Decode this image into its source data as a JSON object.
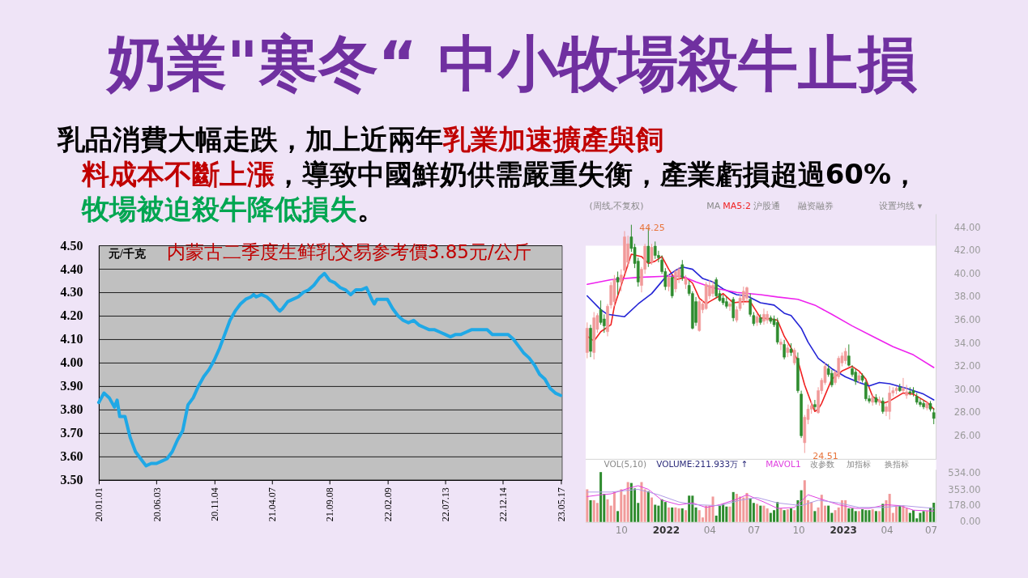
{
  "chart_data": [
    {
      "type": "other",
      "title": "奶業\"寒冬“ 中小牧場殺牛止損",
      "annotations": [
        "乳品消費大幅走跌，加上近兩年",
        "乳業加速擴產與飼",
        "料成本不斷上漲",
        "，導致中國鮮奶供需嚴重失衡，產業虧損超過60%，",
        "牧場被迫殺牛降低損失",
        "。"
      ]
    },
    {
      "type": "line",
      "title": "内蒙古二季度生鲜乳交易参考價3.85元/公斤",
      "ylabel": "元/千克",
      "x": [
        "2020-01-01",
        "2020-01-15",
        "2020-01-29",
        "2020-02-12",
        "2020-02-19",
        "2020-02-26",
        "2020-03-11",
        "2020-03-25",
        "2020-04-08",
        "2020-04-22",
        "2020-05-06",
        "2020-05-20",
        "2020-06-03",
        "2020-06-17",
        "2020-07-01",
        "2020-07-15",
        "2020-07-29",
        "2020-08-12",
        "2020-08-26",
        "2020-09-09",
        "2020-09-23",
        "2020-10-07",
        "2020-10-21",
        "2020-11-04",
        "2020-11-18",
        "2020-12-02",
        "2020-12-16",
        "2020-12-30",
        "2021-01-13",
        "2021-01-27",
        "2021-02-10",
        "2021-02-17",
        "2021-02-24",
        "2021-03-10",
        "2021-03-24",
        "2021-04-07",
        "2021-04-21",
        "2021-04-28",
        "2021-05-05",
        "2021-05-19",
        "2021-06-02",
        "2021-06-16",
        "2021-06-30",
        "2021-07-14",
        "2021-07-28",
        "2021-08-11",
        "2021-08-25",
        "2021-09-08",
        "2021-09-22",
        "2021-10-06",
        "2021-10-20",
        "2021-11-03",
        "2021-11-17",
        "2021-12-01",
        "2021-12-15",
        "2021-12-29",
        "2022-01-05",
        "2022-01-12",
        "2022-01-26",
        "2022-02-09",
        "2022-02-23",
        "2022-03-09",
        "2022-03-23",
        "2022-04-06",
        "2022-04-20",
        "2022-05-04",
        "2022-05-18",
        "2022-06-01",
        "2022-06-15",
        "2022-06-29",
        "2022-07-13",
        "2022-07-27",
        "2022-08-10",
        "2022-08-24",
        "2022-09-07",
        "2022-09-21",
        "2022-10-05",
        "2022-10-19",
        "2022-11-02",
        "2022-11-16",
        "2022-11-30",
        "2022-12-14",
        "2022-12-28",
        "2023-01-11",
        "2023-01-25",
        "2023-02-08",
        "2023-02-22",
        "2023-03-08",
        "2023-03-22",
        "2023-04-05",
        "2023-04-19",
        "2023-05-03",
        "2023-05-17"
      ],
      "series": [
        {
          "color": "#1fa8e6",
          "values": [
            3.83,
            3.87,
            3.85,
            3.81,
            3.84,
            3.77,
            3.77,
            3.68,
            3.62,
            3.59,
            3.56,
            3.57,
            3.57,
            3.58,
            3.59,
            3.62,
            3.67,
            3.71,
            3.82,
            3.85,
            3.9,
            3.94,
            3.97,
            4.01,
            4.06,
            4.12,
            4.18,
            4.22,
            4.25,
            4.27,
            4.28,
            4.29,
            4.28,
            4.29,
            4.28,
            4.26,
            4.23,
            4.22,
            4.23,
            4.26,
            4.27,
            4.28,
            4.3,
            4.31,
            4.33,
            4.36,
            4.38,
            4.35,
            4.34,
            4.32,
            4.31,
            4.29,
            4.31,
            4.31,
            4.32,
            4.27,
            4.25,
            4.27,
            4.27,
            4.27,
            4.23,
            4.2,
            4.18,
            4.17,
            4.18,
            4.16,
            4.15,
            4.14,
            4.14,
            4.13,
            4.12,
            4.11,
            4.12,
            4.12,
            4.13,
            4.14,
            4.14,
            4.14,
            4.14,
            4.12,
            4.12,
            4.12,
            4.12,
            4.1,
            4.07,
            4.04,
            4.02,
            3.99,
            3.95,
            3.93,
            3.89,
            3.87,
            3.86
          ]
        }
      ],
      "xlim": [
        "2020-01-01",
        "2023-05-20"
      ],
      "xticks": [
        {
          "value": "2020-01-01",
          "label": "20.01.01"
        },
        {
          "value": "2020-06-03",
          "label": "20.06.03"
        },
        {
          "value": "2020-11-04",
          "label": "20.11.04"
        },
        {
          "value": "2021-04-07",
          "label": "21.04.07"
        },
        {
          "value": "2021-09-08",
          "label": "21.09.08"
        },
        {
          "value": "2022-02-09",
          "label": "22.02.09"
        },
        {
          "value": "2022-07-13",
          "label": "22.07.13"
        },
        {
          "value": "2022-12-14",
          "label": "22.12.14"
        },
        {
          "value": "2023-05-17",
          "label": "23.05.17"
        }
      ],
      "ylim": [
        3.5,
        4.5
      ],
      "yticks": [
        {
          "value": 3.5,
          "label": "3.50"
        },
        {
          "value": 3.6,
          "label": "3.60"
        },
        {
          "value": 3.7,
          "label": "3.70"
        },
        {
          "value": 3.8,
          "label": "3.80"
        },
        {
          "value": 3.9,
          "label": "3.90"
        },
        {
          "value": 4.0,
          "label": "4.00"
        },
        {
          "value": 4.1,
          "label": "4.10"
        },
        {
          "value": 4.2,
          "label": "4.20"
        },
        {
          "value": 4.3,
          "label": "4.30"
        },
        {
          "value": 4.4,
          "label": "4.40"
        },
        {
          "value": 4.5,
          "label": "4.50"
        }
      ],
      "grid": "y"
    },
    {
      "type": "candlestick",
      "subtitle": "(周线,不复权)",
      "x": [
        "2021-07-23",
        "2021-07-30",
        "2021-08-06",
        "2021-08-13",
        "2021-08-20",
        "2021-08-27",
        "2021-09-03",
        "2021-09-10",
        "2021-09-17",
        "2021-09-24",
        "2021-10-01",
        "2021-10-08",
        "2021-10-15",
        "2021-10-22",
        "2021-10-29",
        "2021-11-05",
        "2021-11-12",
        "2021-11-19",
        "2021-11-26",
        "2021-12-03",
        "2021-12-10",
        "2021-12-17",
        "2021-12-24",
        "2021-12-31",
        "2022-01-07",
        "2022-01-14",
        "2022-01-21",
        "2022-01-28",
        "2022-02-04",
        "2022-02-11",
        "2022-02-18",
        "2022-02-25",
        "2022-03-04",
        "2022-03-11",
        "2022-03-18",
        "2022-03-25",
        "2022-04-01",
        "2022-04-08",
        "2022-04-15",
        "2022-04-22",
        "2022-04-29",
        "2022-05-06",
        "2022-05-13",
        "2022-05-20",
        "2022-05-27",
        "2022-06-03",
        "2022-06-10",
        "2022-06-17",
        "2022-06-24",
        "2022-07-01",
        "2022-07-08",
        "2022-07-15",
        "2022-07-22",
        "2022-07-29",
        "2022-08-05",
        "2022-08-12",
        "2022-08-19",
        "2022-08-26",
        "2022-09-02",
        "2022-09-09",
        "2022-09-16",
        "2022-09-23",
        "2022-09-30",
        "2022-10-07",
        "2022-10-14",
        "2022-10-21",
        "2022-10-28",
        "2022-11-04",
        "2022-11-11",
        "2022-11-18",
        "2022-11-25",
        "2022-12-02",
        "2022-12-09",
        "2022-12-16",
        "2022-12-23",
        "2022-12-30",
        "2023-01-06",
        "2023-01-13",
        "2023-01-20",
        "2023-01-27",
        "2023-02-03",
        "2023-02-10",
        "2023-02-17",
        "2023-02-24",
        "2023-03-03",
        "2023-03-10",
        "2023-03-17",
        "2023-03-24",
        "2023-03-31",
        "2023-04-07",
        "2023-04-14",
        "2023-04-21",
        "2023-04-28",
        "2023-05-05",
        "2023-05-12",
        "2023-05-19",
        "2023-05-26",
        "2023-06-02",
        "2023-06-09",
        "2023-06-16",
        "2023-06-23",
        "2023-06-30",
        "2023-07-07"
      ],
      "ohlc": [
        [
          33.2,
          35.8,
          32.7,
          35.3
        ],
        [
          35.3,
          35.6,
          32.8,
          33.3
        ],
        [
          33.2,
          36.7,
          32.6,
          36.2
        ],
        [
          35.2,
          36.6,
          34.9,
          36.4
        ],
        [
          36.9,
          37.7,
          35.6,
          35.8
        ],
        [
          36.1,
          36.5,
          34.9,
          35.5
        ],
        [
          35.0,
          37.4,
          34.6,
          37.2
        ],
        [
          37.3,
          39.3,
          37.0,
          39.0
        ],
        [
          37.6,
          39.9,
          37.2,
          39.5
        ],
        [
          39.7,
          40.2,
          38.2,
          39.3
        ],
        [
          39.3,
          40.4,
          38.5,
          39.9
        ],
        [
          40.3,
          43.7,
          40.0,
          43.2
        ],
        [
          41.0,
          43.3,
          40.6,
          42.6
        ],
        [
          43.2,
          44.25,
          41.9,
          42.2
        ],
        [
          42.3,
          42.6,
          40.5,
          40.9
        ],
        [
          41.1,
          41.4,
          38.9,
          39.3
        ],
        [
          39.0,
          40.6,
          38.4,
          40.4
        ],
        [
          40.4,
          42.6,
          40.0,
          42.4
        ],
        [
          42.4,
          44.0,
          40.6,
          41.0
        ],
        [
          41.0,
          42.6,
          40.8,
          42.3
        ],
        [
          42.4,
          42.8,
          41.3,
          41.6
        ],
        [
          41.6,
          42.0,
          41.0,
          41.4
        ],
        [
          41.2,
          41.6,
          40.0,
          40.2
        ],
        [
          40.2,
          40.5,
          38.6,
          38.9
        ],
        [
          38.9,
          40.0,
          38.5,
          39.7
        ],
        [
          39.7,
          39.9,
          37.9,
          38.1
        ],
        [
          38.7,
          40.4,
          38.4,
          40.2
        ],
        [
          39.7,
          40.6,
          39.2,
          40.4
        ],
        [
          40.8,
          41.2,
          39.4,
          39.7
        ],
        [
          39.1,
          39.9,
          38.7,
          39.6
        ],
        [
          39.0,
          39.4,
          38.1,
          38.3
        ],
        [
          38.3,
          38.5,
          35.2,
          35.3
        ],
        [
          37.6,
          38.0,
          35.5,
          35.8
        ],
        [
          35.1,
          37.8,
          35.0,
          37.6
        ],
        [
          36.9,
          37.7,
          36.6,
          37.4
        ],
        [
          37.0,
          39.3,
          36.9,
          39.1
        ],
        [
          38.1,
          39.5,
          37.8,
          39.0
        ],
        [
          38.3,
          39.4,
          38.0,
          39.0
        ],
        [
          39.5,
          39.7,
          37.9,
          38.1
        ],
        [
          38.3,
          38.6,
          37.6,
          37.7
        ],
        [
          37.9,
          38.2,
          37.3,
          37.5
        ],
        [
          37.6,
          38.0,
          37.0,
          37.2
        ],
        [
          37.2,
          37.6,
          36.8,
          37.4
        ],
        [
          37.8,
          38.0,
          35.9,
          36.2
        ],
        [
          36.0,
          37.2,
          35.8,
          36.9
        ],
        [
          37.0,
          38.2,
          36.8,
          37.9
        ],
        [
          37.7,
          38.9,
          37.3,
          38.5
        ],
        [
          37.9,
          38.9,
          37.6,
          38.8
        ],
        [
          37.8,
          38.3,
          36.3,
          36.5
        ],
        [
          36.4,
          36.7,
          35.5,
          35.7
        ],
        [
          35.8,
          36.6,
          35.5,
          36.3
        ],
        [
          36.2,
          36.5,
          35.6,
          35.8
        ],
        [
          35.9,
          37.0,
          35.6,
          36.5
        ],
        [
          36.0,
          36.8,
          35.7,
          36.5
        ],
        [
          36.2,
          36.4,
          35.7,
          35.9
        ],
        [
          36.1,
          36.4,
          35.4,
          35.6
        ],
        [
          35.8,
          36.2,
          33.9,
          34.1
        ],
        [
          33.9,
          34.4,
          33.4,
          34.1
        ],
        [
          33.9,
          34.3,
          32.6,
          32.8
        ],
        [
          33.2,
          33.9,
          32.8,
          33.6
        ],
        [
          33.5,
          34.0,
          32.9,
          33.2
        ],
        [
          32.3,
          33.6,
          32.1,
          33.4
        ],
        [
          32.7,
          33.2,
          29.7,
          29.9
        ],
        [
          29.6,
          29.9,
          25.8,
          26.0
        ],
        [
          25.4,
          27.8,
          24.51,
          27.6
        ],
        [
          27.4,
          28.7,
          27.0,
          28.3
        ],
        [
          28.3,
          29.0,
          27.9,
          28.6
        ],
        [
          28.7,
          29.1,
          28.2,
          28.5
        ],
        [
          28.0,
          30.2,
          27.9,
          29.9
        ],
        [
          29.9,
          31.0,
          29.6,
          30.8
        ],
        [
          30.6,
          32.3,
          30.4,
          32.0
        ],
        [
          31.8,
          32.2,
          31.1,
          31.3
        ],
        [
          31.4,
          31.7,
          30.2,
          30.4
        ],
        [
          30.6,
          31.7,
          30.4,
          31.5
        ],
        [
          31.1,
          32.9,
          30.9,
          32.7
        ],
        [
          32.3,
          33.2,
          32.0,
          32.9
        ],
        [
          32.5,
          33.6,
          32.2,
          33.3
        ],
        [
          32.9,
          33.9,
          32.0,
          32.1
        ],
        [
          31.8,
          32.1,
          31.1,
          31.3
        ],
        [
          31.5,
          31.8,
          30.4,
          30.7
        ],
        [
          30.8,
          31.5,
          30.5,
          31.2
        ],
        [
          31.2,
          31.4,
          30.6,
          30.8
        ],
        [
          30.6,
          30.8,
          29.0,
          29.2
        ],
        [
          29.2,
          29.5,
          28.8,
          29.0
        ],
        [
          28.9,
          29.6,
          28.6,
          29.3
        ],
        [
          29.3,
          29.6,
          28.7,
          28.9
        ],
        [
          28.9,
          29.4,
          28.6,
          29.1
        ],
        [
          29.0,
          29.3,
          27.9,
          28.1
        ],
        [
          28.1,
          28.8,
          27.7,
          28.5
        ],
        [
          28.1,
          30.3,
          27.4,
          29.7
        ],
        [
          29.7,
          30.2,
          29.4,
          29.9
        ],
        [
          29.9,
          30.3,
          29.6,
          30.1
        ],
        [
          30.2,
          30.5,
          29.8,
          29.9
        ],
        [
          29.9,
          31.0,
          29.7,
          30.1
        ],
        [
          29.5,
          30.4,
          29.2,
          29.8
        ],
        [
          29.8,
          30.2,
          29.5,
          29.7
        ],
        [
          29.9,
          30.2,
          29.4,
          29.7
        ],
        [
          29.4,
          29.7,
          28.7,
          28.9
        ],
        [
          28.9,
          29.2,
          28.5,
          28.7
        ],
        [
          28.8,
          29.1,
          28.3,
          28.5
        ],
        [
          28.4,
          29.0,
          28.2,
          28.8
        ],
        [
          28.8,
          29.0,
          28.1,
          28.3
        ],
        [
          28.0,
          28.4,
          27.0,
          27.5
        ]
      ],
      "colors": [
        "#f19a9a",
        "#2e8b2e",
        "#f19a9a",
        "#f19a9a",
        "#2e8b2e",
        "#2e8b2e",
        "#f19a9a",
        "#f19a9a",
        "#f19a9a",
        "#2e8b2e",
        "#f19a9a",
        "#f19a9a",
        "#f19a9a",
        "#2e8b2e",
        "#2e8b2e",
        "#2e8b2e",
        "#f19a9a",
        "#f19a9a",
        "#2e8b2e",
        "#f19a9a",
        "#2e8b2e",
        "#2e8b2e",
        "#2e8b2e",
        "#2e8b2e",
        "#f19a9a",
        "#2e8b2e",
        "#f19a9a",
        "#f19a9a",
        "#2e8b2e",
        "#f19a9a",
        "#2e8b2e",
        "#2e8b2e",
        "#2e8b2e",
        "#f19a9a",
        "#f19a9a",
        "#f19a9a",
        "#f19a9a",
        "#f19a9a",
        "#2e8b2e",
        "#2e8b2e",
        "#2e8b2e",
        "#2e8b2e",
        "#f19a9a",
        "#2e8b2e",
        "#f19a9a",
        "#f19a9a",
        "#f19a9a",
        "#f19a9a",
        "#2e8b2e",
        "#2e8b2e",
        "#f19a9a",
        "#2e8b2e",
        "#f19a9a",
        "#f19a9a",
        "#2e8b2e",
        "#2e8b2e",
        "#2e8b2e",
        "#f19a9a",
        "#2e8b2e",
        "#f19a9a",
        "#2e8b2e",
        "#f19a9a",
        "#2e8b2e",
        "#2e8b2e",
        "#f19a9a",
        "#f19a9a",
        "#f19a9a",
        "#2e8b2e",
        "#f19a9a",
        "#f19a9a",
        "#f19a9a",
        "#2e8b2e",
        "#2e8b2e",
        "#f19a9a",
        "#f19a9a",
        "#f19a9a",
        "#f19a9a",
        "#2e8b2e",
        "#2e8b2e",
        "#2e8b2e",
        "#f19a9a",
        "#2e8b2e",
        "#2e8b2e",
        "#2e8b2e",
        "#f19a9a",
        "#2e8b2e",
        "#f19a9a",
        "#2e8b2e",
        "#f19a9a",
        "#f19a9a",
        "#f19a9a",
        "#f19a9a",
        "#2e8b2e",
        "#f19a9a",
        "#f19a9a",
        "#2e8b2e",
        "#2e8b2e",
        "#2e8b2e",
        "#2e8b2e",
        "#2e8b2e",
        "#f19a9a",
        "#2e8b2e",
        "#2e8b2e"
      ],
      "series": [
        {
          "type": "line",
          "name": "MA5:2",
          "color": "#f02020",
          "x": [
            "2021-07-23",
            "2021-08-06",
            "2021-08-20",
            "2021-09-10",
            "2021-09-17",
            "2021-10-08",
            "2021-10-22",
            "2021-11-12",
            "2021-11-26",
            "2021-12-10",
            "2021-12-24",
            "2022-01-07",
            "2022-01-21",
            "2022-02-11",
            "2022-02-25",
            "2022-03-11",
            "2022-03-25",
            "2022-04-01",
            "2022-04-22",
            "2022-04-29",
            "2022-05-20",
            "2022-06-10",
            "2022-06-24",
            "2022-07-15",
            "2022-08-05",
            "2022-08-19",
            "2022-09-02",
            "2022-09-16",
            "2022-09-30",
            "2022-10-14",
            "2022-10-28",
            "2022-11-04",
            "2022-11-11",
            "2022-11-18",
            "2022-12-09",
            "2022-12-30",
            "2023-01-20",
            "2023-02-03",
            "2023-02-17",
            "2023-03-03",
            "2023-03-24",
            "2023-04-07",
            "2023-05-05",
            "2023-05-26",
            "2023-06-23",
            "2023-07-07"
          ],
          "values": [
            34.6,
            34.2,
            35.0,
            35.6,
            37.2,
            39.9,
            41.7,
            41.5,
            40.9,
            41.1,
            41.5,
            40.4,
            39.5,
            39.7,
            39.2,
            37.9,
            37.4,
            37.6,
            38.1,
            38.3,
            37.5,
            37.6,
            37.6,
            36.2,
            36.1,
            36.0,
            34.6,
            33.6,
            32.5,
            30.4,
            28.8,
            28.1,
            28.3,
            28.8,
            30.9,
            31.6,
            32.0,
            31.6,
            30.9,
            29.4,
            28.8,
            29.0,
            29.7,
            29.6,
            28.9,
            28.3
          ]
        },
        {
          "type": "line",
          "color": "#2424d6",
          "x": [
            "2021-07-23",
            "2021-08-20",
            "2021-09-03",
            "2021-10-08",
            "2021-11-05",
            "2021-12-03",
            "2021-12-31",
            "2022-01-21",
            "2022-02-04",
            "2022-02-25",
            "2022-03-18",
            "2022-04-08",
            "2022-04-29",
            "2022-05-27",
            "2022-06-17",
            "2022-07-15",
            "2022-08-12",
            "2022-09-02",
            "2022-09-16",
            "2022-10-07",
            "2022-10-21",
            "2022-11-11",
            "2022-12-09",
            "2023-01-06",
            "2023-02-03",
            "2023-02-24",
            "2023-03-17",
            "2023-04-07",
            "2023-05-12",
            "2023-06-16",
            "2023-07-07"
          ],
          "values": [
            38.1,
            36.9,
            36.5,
            36.3,
            37.4,
            38.3,
            39.7,
            40.3,
            40.6,
            40.4,
            39.6,
            39.3,
            38.7,
            38.2,
            38.1,
            37.5,
            37.3,
            36.6,
            36.4,
            35.3,
            34.1,
            32.7,
            31.8,
            31.1,
            30.6,
            30.3,
            30.6,
            30.5,
            30.1,
            29.6,
            29.1
          ]
        },
        {
          "type": "line",
          "color": "#ee22ee",
          "x": [
            "2021-07-23",
            "2021-09-10",
            "2021-11-05",
            "2021-12-31",
            "2022-02-04",
            "2022-03-04",
            "2022-04-08",
            "2022-05-27",
            "2022-07-15",
            "2022-08-19",
            "2022-09-30",
            "2022-11-04",
            "2022-12-09",
            "2023-01-20",
            "2023-03-03",
            "2023-04-14",
            "2023-05-26",
            "2023-07-07"
          ],
          "values": [
            39.1,
            39.5,
            39.7,
            39.8,
            39.8,
            39.3,
            38.8,
            38.4,
            38.2,
            38.0,
            37.8,
            37.3,
            36.5,
            35.5,
            34.6,
            33.7,
            33.0,
            31.9
          ]
        }
      ],
      "annotations": [
        "MA",
        "沪股通",
        "融资融券",
        "设置均线 ▾",
        {
          "text": "44.25",
          "x": "2021-10-22",
          "y": 44.25
        },
        {
          "text": "24.51",
          "x": "2022-10-14",
          "y": 24.51
        }
      ],
      "xlim": [
        "2021-07-19",
        "2023-07-11"
      ],
      "ylim": [
        24,
        45.2
      ],
      "yticks": [
        {
          "value": 26,
          "label": "26.00"
        },
        {
          "value": 28,
          "label": "28.00"
        },
        {
          "value": 30,
          "label": "30.00"
        },
        {
          "value": 32,
          "label": "32.00"
        },
        {
          "value": 34,
          "label": "34.00"
        },
        {
          "value": 36,
          "label": "36.00"
        },
        {
          "value": 38,
          "label": "38.00"
        },
        {
          "value": 40,
          "label": "40.00"
        },
        {
          "value": 42,
          "label": "42.00"
        },
        {
          "value": 44,
          "label": "44.00"
        }
      ],
      "tick_labels": "y"
    },
    {
      "type": "bar",
      "x": [
        "2021-07-23",
        "2021-07-30",
        "2021-08-06",
        "2021-08-13",
        "2021-08-20",
        "2021-08-27",
        "2021-09-03",
        "2021-09-10",
        "2021-09-17",
        "2021-09-24",
        "2021-10-01",
        "2021-10-08",
        "2021-10-15",
        "2021-10-22",
        "2021-10-29",
        "2021-11-05",
        "2021-11-12",
        "2021-11-19",
        "2021-11-26",
        "2021-12-03",
        "2021-12-10",
        "2021-12-17",
        "2021-12-24",
        "2021-12-31",
        "2022-01-07",
        "2022-01-14",
        "2022-01-21",
        "2022-01-28",
        "2022-02-04",
        "2022-02-11",
        "2022-02-18",
        "2022-02-25",
        "2022-03-04",
        "2022-03-11",
        "2022-03-18",
        "2022-03-25",
        "2022-04-01",
        "2022-04-08",
        "2022-04-15",
        "2022-04-22",
        "2022-04-29",
        "2022-05-06",
        "2022-05-13",
        "2022-05-20",
        "2022-05-27",
        "2022-06-03",
        "2022-06-10",
        "2022-06-17",
        "2022-06-24",
        "2022-07-01",
        "2022-07-08",
        "2022-07-15",
        "2022-07-22",
        "2022-07-29",
        "2022-08-05",
        "2022-08-12",
        "2022-08-19",
        "2022-08-26",
        "2022-09-02",
        "2022-09-09",
        "2022-09-16",
        "2022-09-23",
        "2022-09-30",
        "2022-10-07",
        "2022-10-14",
        "2022-10-21",
        "2022-10-28",
        "2022-11-04",
        "2022-11-11",
        "2022-11-18",
        "2022-11-25",
        "2022-12-02",
        "2022-12-09",
        "2022-12-16",
        "2022-12-23",
        "2022-12-30",
        "2023-01-06",
        "2023-01-13",
        "2023-01-20",
        "2023-01-27",
        "2023-02-03",
        "2023-02-10",
        "2023-02-17",
        "2023-02-24",
        "2023-03-03",
        "2023-03-10",
        "2023-03-17",
        "2023-03-24",
        "2023-03-31",
        "2023-04-07",
        "2023-04-14",
        "2023-04-21",
        "2023-04-28",
        "2023-05-05",
        "2023-05-12",
        "2023-05-19",
        "2023-05-26",
        "2023-06-02",
        "2023-06-09",
        "2023-06-16",
        "2023-06-23",
        "2023-06-30",
        "2023-07-07"
      ],
      "series": [
        {
          "type": "bar",
          "values": [
            360,
            240,
            240,
            210,
            550,
            310,
            250,
            180,
            330,
            120,
            360,
            300,
            440,
            430,
            370,
            210,
            440,
            360,
            340,
            270,
            190,
            180,
            250,
            220,
            160,
            160,
            160,
            150,
            150,
            130,
            290,
            290,
            160,
            130,
            50,
            180,
            180,
            280,
            70,
            180,
            200,
            170,
            170,
            330,
            310,
            280,
            270,
            320,
            260,
            210,
            200,
            180,
            180,
            150,
            100,
            130,
            220,
            150,
            130,
            140,
            150,
            130,
            240,
            350,
            460,
            240,
            220,
            120,
            160,
            300,
            180,
            180,
            100,
            130,
            160,
            240,
            240,
            150,
            150,
            120,
            120,
            140,
            130,
            130,
            140,
            120,
            120,
            200,
            240,
            310,
            100,
            180,
            180,
            180,
            150,
            100,
            130,
            40,
            100,
            120,
            120,
            160,
            211.933
          ],
          "colors": [
            "#f19a9a",
            "#2e8b2e",
            "#f19a9a",
            "#f19a9a",
            "#2e8b2e",
            "#2e8b2e",
            "#f19a9a",
            "#f19a9a",
            "#f19a9a",
            "#2e8b2e",
            "#f19a9a",
            "#f19a9a",
            "#f19a9a",
            "#2e8b2e",
            "#2e8b2e",
            "#2e8b2e",
            "#f19a9a",
            "#f19a9a",
            "#2e8b2e",
            "#f19a9a",
            "#2e8b2e",
            "#2e8b2e",
            "#2e8b2e",
            "#2e8b2e",
            "#f19a9a",
            "#2e8b2e",
            "#f19a9a",
            "#f19a9a",
            "#2e8b2e",
            "#f19a9a",
            "#2e8b2e",
            "#2e8b2e",
            "#2e8b2e",
            "#f19a9a",
            "#f19a9a",
            "#f19a9a",
            "#f19a9a",
            "#f19a9a",
            "#2e8b2e",
            "#2e8b2e",
            "#2e8b2e",
            "#2e8b2e",
            "#f19a9a",
            "#2e8b2e",
            "#f19a9a",
            "#f19a9a",
            "#f19a9a",
            "#f19a9a",
            "#2e8b2e",
            "#2e8b2e",
            "#f19a9a",
            "#2e8b2e",
            "#f19a9a",
            "#f19a9a",
            "#2e8b2e",
            "#2e8b2e",
            "#2e8b2e",
            "#f19a9a",
            "#2e8b2e",
            "#f19a9a",
            "#2e8b2e",
            "#f19a9a",
            "#2e8b2e",
            "#2e8b2e",
            "#f19a9a",
            "#f19a9a",
            "#f19a9a",
            "#2e8b2e",
            "#f19a9a",
            "#f19a9a",
            "#f19a9a",
            "#2e8b2e",
            "#2e8b2e",
            "#f19a9a",
            "#f19a9a",
            "#f19a9a",
            "#f19a9a",
            "#2e8b2e",
            "#2e8b2e",
            "#2e8b2e",
            "#f19a9a",
            "#2e8b2e",
            "#2e8b2e",
            "#2e8b2e",
            "#f19a9a",
            "#2e8b2e",
            "#f19a9a",
            "#2e8b2e",
            "#f19a9a",
            "#f19a9a",
            "#f19a9a",
            "#f19a9a",
            "#2e8b2e",
            "#f19a9a",
            "#f19a9a",
            "#2e8b2e",
            "#2e8b2e",
            "#2e8b2e",
            "#2e8b2e",
            "#2e8b2e",
            "#f19a9a",
            "#2e8b2e",
            "#2e8b2e"
          ]
        },
        {
          "type": "line",
          "name": "MAVOL1",
          "color": "#e040e0",
          "x": [
            "2021-07-23",
            "2021-08-20",
            "2021-09-10",
            "2021-10-15",
            "2021-11-05",
            "2021-11-26",
            "2021-12-24",
            "2022-01-28",
            "2022-02-25",
            "2022-03-25",
            "2022-04-22",
            "2022-05-27",
            "2022-06-17",
            "2022-07-22",
            "2022-08-19",
            "2022-09-23",
            "2022-10-21",
            "2022-11-18",
            "2022-12-23",
            "2023-01-27",
            "2023-02-24",
            "2023-03-31",
            "2023-04-28",
            "2023-05-26",
            "2023-07-07"
          ],
          "values": [
            280,
            300,
            310,
            370,
            400,
            360,
            240,
            190,
            210,
            160,
            190,
            250,
            300,
            220,
            150,
            160,
            300,
            250,
            190,
            150,
            150,
            190,
            180,
            130,
            120
          ]
        },
        {
          "type": "line",
          "color": "#b09ae6",
          "x": [
            "2021-07-23",
            "2021-09-10",
            "2021-11-05",
            "2021-12-17",
            "2022-01-28",
            "2022-03-04",
            "2022-04-22",
            "2022-06-03",
            "2022-07-08",
            "2022-08-19",
            "2022-10-07",
            "2022-11-11",
            "2022-12-23",
            "2023-02-03",
            "2023-03-24",
            "2023-05-05",
            "2023-07-07"
          ],
          "values": [
            330,
            330,
            360,
            300,
            220,
            190,
            180,
            240,
            270,
            210,
            180,
            240,
            210,
            160,
            160,
            180,
            150
          ]
        }
      ],
      "annotations": [
        "VOL(5,10)",
        "VOLUME:211.933万 ↑",
        "改参数",
        "加指标",
        "换指标"
      ],
      "xlim": [
        "2021-07-19",
        "2023-07-11"
      ],
      "xticks": [
        {
          "value": "2021-10-01",
          "label": "10"
        },
        {
          "value": "2022-01-01",
          "label": "2022"
        },
        {
          "value": "2022-04-01",
          "label": "04"
        },
        {
          "value": "2022-07-01",
          "label": "07"
        },
        {
          "value": "2022-10-01",
          "label": "10"
        },
        {
          "value": "2023-01-01",
          "label": "2023"
        },
        {
          "value": "2023-04-01",
          "label": "04"
        },
        {
          "value": "2023-07-01",
          "label": "07"
        }
      ],
      "ylim": [
        0,
        580
      ],
      "yticks": [
        {
          "value": 0,
          "label": "0.00"
        },
        {
          "value": 178,
          "label": "178.00"
        },
        {
          "value": 353,
          "label": "353.00"
        },
        {
          "value": 534,
          "label": "534.00"
        }
      ]
    }
  ]
}
